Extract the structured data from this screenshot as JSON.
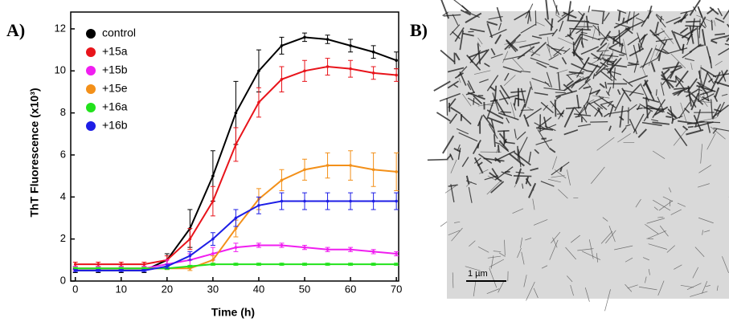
{
  "chart_data": {
    "type": "line",
    "panel_label": "A)",
    "x_label": "Time (h)",
    "y_label": "ThT Fluorescence (x10³)",
    "x": [
      0,
      5,
      10,
      15,
      20,
      25,
      30,
      35,
      40,
      45,
      50,
      55,
      60,
      65,
      70
    ],
    "series": [
      {
        "name": "control",
        "color": "#000000",
        "values": [
          0.5,
          0.5,
          0.5,
          0.5,
          1.0,
          2.5,
          5.0,
          8.0,
          10.0,
          11.2,
          11.6,
          11.5,
          11.2,
          10.9,
          10.5
        ],
        "errors": [
          0.1,
          0.1,
          0.1,
          0.1,
          0.3,
          0.9,
          1.2,
          1.5,
          1.0,
          0.4,
          0.2,
          0.2,
          0.3,
          0.3,
          0.4
        ]
      },
      {
        "name": "+15a",
        "color": "#e8141b",
        "values": [
          0.8,
          0.8,
          0.8,
          0.8,
          1.0,
          2.0,
          3.8,
          6.5,
          8.5,
          9.6,
          10.0,
          10.2,
          10.1,
          9.9,
          9.8
        ],
        "errors": [
          0.1,
          0.1,
          0.1,
          0.1,
          0.2,
          0.5,
          0.7,
          0.8,
          0.7,
          0.6,
          0.5,
          0.4,
          0.4,
          0.3,
          0.3
        ]
      },
      {
        "name": "+15b",
        "color": "#f01ef0",
        "values": [
          0.6,
          0.6,
          0.6,
          0.6,
          0.8,
          1.0,
          1.3,
          1.6,
          1.7,
          1.7,
          1.6,
          1.5,
          1.5,
          1.4,
          1.3
        ],
        "errors": [
          0.1,
          0.1,
          0.1,
          0.1,
          0.2,
          0.3,
          0.3,
          0.2,
          0.1,
          0.1,
          0.1,
          0.1,
          0.1,
          0.1,
          0.1
        ]
      },
      {
        "name": "+15e",
        "color": "#f39019",
        "values": [
          0.6,
          0.6,
          0.6,
          0.6,
          0.6,
          0.6,
          1.0,
          2.5,
          3.9,
          4.8,
          5.3,
          5.5,
          5.5,
          5.3,
          5.2
        ],
        "errors": [
          0.05,
          0.05,
          0.05,
          0.05,
          0.05,
          0.1,
          0.2,
          0.4,
          0.5,
          0.5,
          0.5,
          0.6,
          0.7,
          0.8,
          0.9
        ]
      },
      {
        "name": "+16a",
        "color": "#22e21c",
        "values": [
          0.6,
          0.6,
          0.6,
          0.6,
          0.6,
          0.7,
          0.8,
          0.8,
          0.8,
          0.8,
          0.8,
          0.8,
          0.8,
          0.8,
          0.8
        ],
        "errors": [
          0.05,
          0.05,
          0.05,
          0.05,
          0.05,
          0.05,
          0.05,
          0.05,
          0.05,
          0.05,
          0.05,
          0.05,
          0.05,
          0.05,
          0.05
        ]
      },
      {
        "name": "+16b",
        "color": "#1e1ee6",
        "values": [
          0.5,
          0.5,
          0.5,
          0.5,
          0.7,
          1.2,
          2.0,
          3.0,
          3.6,
          3.8,
          3.8,
          3.8,
          3.8,
          3.8,
          3.8
        ],
        "errors": [
          0.05,
          0.05,
          0.05,
          0.05,
          0.1,
          0.2,
          0.3,
          0.4,
          0.4,
          0.4,
          0.4,
          0.4,
          0.4,
          0.4,
          0.4
        ]
      }
    ],
    "xlim": [
      -1,
      70.5
    ],
    "ylim": [
      0,
      12.8
    ],
    "xticks": [
      0,
      10,
      20,
      30,
      40,
      50,
      60,
      70
    ],
    "yticks": [
      0,
      2,
      4,
      6,
      8,
      10,
      12
    ],
    "legend": "upper-left"
  },
  "image": {
    "panel_label": "B)",
    "scale_bar": "1 µm"
  }
}
